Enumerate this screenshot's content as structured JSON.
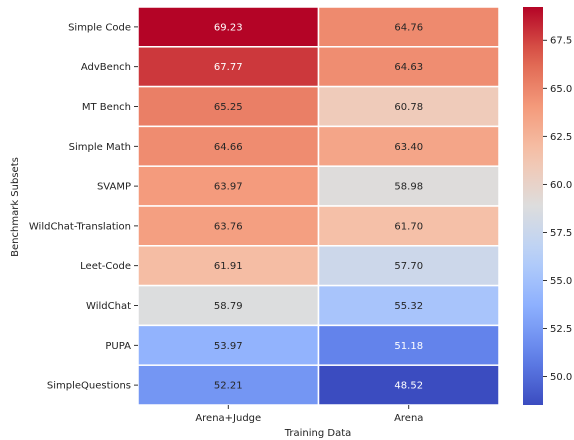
{
  "chart_data": {
    "type": "heatmap",
    "xlabel": "Training Data",
    "ylabel": "Benchmark Subsets",
    "x_categories": [
      "Arena+Judge",
      "Arena"
    ],
    "y_categories": [
      "Simple Code",
      "AdvBench",
      "MT Bench",
      "Simple Math",
      "SVAMP",
      "WildChat-Translation",
      "Leet-Code",
      "WildChat",
      "PUPA",
      "SimpleQuestions"
    ],
    "values": [
      [
        69.23,
        64.76
      ],
      [
        67.77,
        64.63
      ],
      [
        65.25,
        60.78
      ],
      [
        64.66,
        63.4
      ],
      [
        63.97,
        58.98
      ],
      [
        63.76,
        61.7
      ],
      [
        61.91,
        57.7
      ],
      [
        58.79,
        55.32
      ],
      [
        53.97,
        51.18
      ],
      [
        52.21,
        48.52
      ]
    ],
    "colormap": "coolwarm",
    "vmin": 48.52,
    "vmax": 69.23,
    "colorbar_ticks": [
      "50.0",
      "52.5",
      "55.0",
      "57.5",
      "60.0",
      "62.5",
      "65.0",
      "67.5"
    ]
  }
}
